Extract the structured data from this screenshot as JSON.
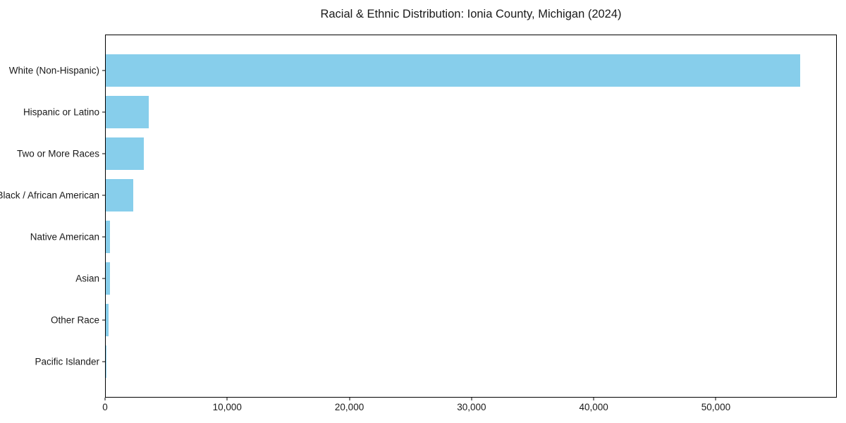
{
  "figure": {
    "background": "#ffffff",
    "text_color": "#1a1a1a",
    "spine_color": "#000000"
  },
  "chart_data": {
    "type": "bar",
    "orientation": "horizontal",
    "title": "Racial & Ethnic Distribution: Ionia County, Michigan (2024)",
    "xlabel": "",
    "ylabel": "",
    "categories": [
      "White (Non-Hispanic)",
      "Hispanic or Latino",
      "Two or More Races",
      "Black / African American",
      "Native American",
      "Asian",
      "Other Race",
      "Pacific Islander"
    ],
    "values": [
      56950,
      3520,
      3130,
      2230,
      350,
      340,
      220,
      20
    ],
    "xlim": [
      0,
      59900
    ],
    "xticks": [
      0,
      10000,
      20000,
      30000,
      40000,
      50000
    ],
    "xtick_labels": [
      "0",
      "10,000",
      "20,000",
      "30,000",
      "40,000",
      "50,000"
    ],
    "bar_color": "#87CEEB",
    "grid": false,
    "legend": null
  }
}
